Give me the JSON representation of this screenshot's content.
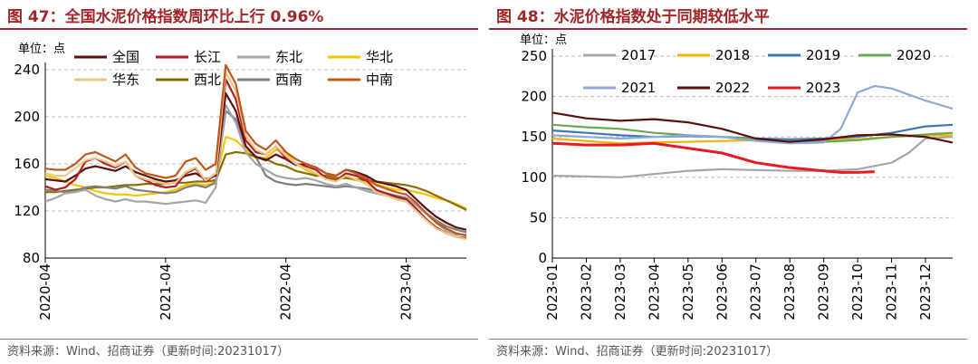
{
  "left": {
    "title": "图 47：全国水泥价格指数周环比上行 0.96%",
    "source": "资料来源：Wind、招商证券（更新时间:20231017）",
    "colors": {
      "title": "#a2262a",
      "grid": "#bfbfbf"
    }
  },
  "right": {
    "title": "图 48：水泥价格指数处于同期较低水平",
    "source": "资料来源：Wind、招商证券（更新时间:20231017）"
  },
  "chart_data": [
    {
      "type": "line",
      "title": "全国水泥价格指数周环比上行 0.96%",
      "unit_label": "单位：点",
      "ylim": [
        80,
        240
      ],
      "yticks": [
        80,
        120,
        160,
        200,
        240
      ],
      "x_range": [
        0,
        42
      ],
      "xticks": [
        {
          "x": 0,
          "label": "2020-04"
        },
        {
          "x": 12,
          "label": "2021-04"
        },
        {
          "x": 24,
          "label": "2022-04"
        },
        {
          "x": 36,
          "label": "2023-04"
        }
      ],
      "x": [
        0,
        1,
        2,
        3,
        4,
        5,
        6,
        7,
        8,
        9,
        10,
        11,
        12,
        13,
        14,
        15,
        16,
        17,
        18,
        19,
        20,
        21,
        22,
        23,
        24,
        25,
        26,
        27,
        28,
        29,
        30,
        31,
        32,
        33,
        34,
        35,
        36,
        37,
        38,
        39,
        40,
        41,
        42
      ],
      "series": [
        {
          "name": "全国",
          "color": "#5b0f0f",
          "values": [
            147,
            146,
            145,
            150,
            156,
            158,
            156,
            154,
            158,
            153,
            150,
            147,
            145,
            146,
            150,
            152,
            147,
            150,
            220,
            205,
            175,
            166,
            163,
            168,
            164,
            159,
            160,
            157,
            152,
            150,
            155,
            153,
            150,
            145,
            143,
            141,
            138,
            130,
            122,
            115,
            110,
            106,
            104
          ]
        },
        {
          "name": "长江",
          "color": "#b01e23",
          "values": [
            141,
            138,
            140,
            147,
            162,
            165,
            160,
            157,
            162,
            150,
            146,
            142,
            140,
            141,
            152,
            156,
            145,
            151,
            232,
            215,
            180,
            170,
            168,
            175,
            165,
            160,
            158,
            155,
            148,
            146,
            152,
            150,
            146,
            138,
            135,
            132,
            130,
            122,
            113,
            106,
            101,
            98,
            97
          ]
        },
        {
          "name": "东北",
          "color": "#a6a6a6",
          "values": [
            128,
            131,
            135,
            136,
            138,
            133,
            130,
            128,
            130,
            128,
            128,
            127,
            126,
            127,
            128,
            129,
            127,
            140,
            210,
            195,
            170,
            160,
            155,
            150,
            148,
            147,
            148,
            146,
            143,
            141,
            143,
            140,
            137,
            135,
            133,
            131,
            130,
            125,
            118,
            110,
            103,
            100,
            100
          ]
        },
        {
          "name": "华北",
          "color": "#f7c500",
          "values": [
            150,
            148,
            145,
            142,
            140,
            137,
            135,
            134,
            134,
            133,
            134,
            135,
            136,
            138,
            142,
            143,
            142,
            145,
            183,
            180,
            172,
            165,
            165,
            172,
            170,
            160,
            155,
            150,
            150,
            147,
            148,
            146,
            145,
            143,
            140,
            138,
            138,
            136,
            134,
            131,
            129,
            126,
            122
          ]
        },
        {
          "name": "华东",
          "color": "#e8c98a",
          "values": [
            152,
            150,
            150,
            156,
            163,
            165,
            162,
            158,
            162,
            150,
            147,
            145,
            143,
            144,
            153,
            157,
            146,
            152,
            238,
            222,
            184,
            172,
            168,
            175,
            167,
            160,
            156,
            152,
            147,
            145,
            150,
            147,
            143,
            136,
            133,
            130,
            128,
            120,
            112,
            105,
            101,
            98,
            96
          ]
        },
        {
          "name": "西北",
          "color": "#8c6d00",
          "values": [
            136,
            136,
            137,
            138,
            139,
            140,
            140,
            141,
            142,
            142,
            143,
            143,
            143,
            144,
            144,
            145,
            145,
            146,
            168,
            170,
            169,
            166,
            164,
            160,
            158,
            154,
            152,
            150,
            150,
            148,
            148,
            147,
            146,
            145,
            144,
            143,
            142,
            140,
            137,
            133,
            129,
            125,
            121
          ]
        },
        {
          "name": "西南",
          "color": "#7f7f7f",
          "values": [
            138,
            137,
            136,
            137,
            140,
            141,
            140,
            139,
            141,
            138,
            137,
            136,
            135,
            136,
            140,
            142,
            140,
            144,
            205,
            198,
            175,
            166,
            150,
            145,
            143,
            142,
            143,
            142,
            141,
            140,
            141,
            140,
            139,
            137,
            135,
            133,
            131,
            125,
            118,
            112,
            107,
            104,
            102
          ]
        },
        {
          "name": "中南",
          "color": "#c0561b",
          "values": [
            156,
            155,
            155,
            160,
            168,
            170,
            166,
            162,
            168,
            157,
            152,
            150,
            148,
            150,
            162,
            165,
            155,
            160,
            244,
            228,
            188,
            177,
            172,
            180,
            170,
            164,
            160,
            157,
            152,
            150,
            155,
            152,
            148,
            142,
            139,
            136,
            134,
            127,
            118,
            110,
            105,
            101,
            99
          ]
        }
      ]
    },
    {
      "type": "line",
      "title": "水泥价格指数处于同期较低水平",
      "unit_label": "单位：点",
      "ylim": [
        0,
        250
      ],
      "yticks": [
        0,
        50,
        100,
        150,
        200,
        250
      ],
      "x_range": [
        0,
        11.8
      ],
      "xticks": [
        {
          "x": 0,
          "label": "2023-01"
        },
        {
          "x": 1,
          "label": "2023-02"
        },
        {
          "x": 2,
          "label": "2023-03"
        },
        {
          "x": 3,
          "label": "2023-04"
        },
        {
          "x": 4,
          "label": "2023-05"
        },
        {
          "x": 5,
          "label": "2023-06"
        },
        {
          "x": 6,
          "label": "2023-07"
        },
        {
          "x": 7,
          "label": "2023-08"
        },
        {
          "x": 8,
          "label": "2023-09"
        },
        {
          "x": 9,
          "label": "2023-10"
        },
        {
          "x": 10,
          "label": "2023-11"
        },
        {
          "x": 11,
          "label": "2023-12"
        }
      ],
      "series": [
        {
          "name": "2017",
          "color": "#a6a6a6",
          "x": [
            0,
            1,
            2,
            3,
            4,
            5,
            6,
            7,
            8,
            9,
            10,
            10.5,
            11,
            11.8
          ],
          "values": [
            102,
            101,
            100,
            104,
            108,
            110,
            109,
            108,
            108,
            110,
            118,
            130,
            148,
            150
          ]
        },
        {
          "name": "2018",
          "color": "#f2b200",
          "x": [
            0,
            1,
            2,
            3,
            4,
            5,
            6,
            7,
            8,
            9,
            10,
            11,
            11.8
          ],
          "values": [
            148,
            145,
            142,
            143,
            144,
            145,
            146,
            144,
            146,
            147,
            150,
            152,
            152
          ]
        },
        {
          "name": "2019",
          "color": "#3b78b5",
          "x": [
            0,
            1,
            2,
            3,
            4,
            5,
            6,
            7,
            8,
            9,
            10,
            11,
            11.8
          ],
          "values": [
            158,
            155,
            152,
            150,
            151,
            150,
            148,
            147,
            148,
            150,
            155,
            163,
            165
          ]
        },
        {
          "name": "2020",
          "color": "#6aa84f",
          "x": [
            0,
            1,
            2,
            3,
            4,
            5,
            6,
            7,
            8,
            9,
            10,
            11,
            11.8
          ],
          "values": [
            165,
            162,
            160,
            155,
            152,
            150,
            147,
            145,
            144,
            146,
            150,
            153,
            155
          ]
        },
        {
          "name": "2021",
          "color": "#8fa8d8",
          "x": [
            0,
            1,
            2,
            3,
            4,
            5,
            6,
            7,
            8,
            8.5,
            9,
            9.5,
            10,
            11,
            11.8
          ],
          "values": [
            152,
            150,
            148,
            150,
            152,
            150,
            145,
            142,
            143,
            160,
            205,
            213,
            210,
            195,
            185
          ]
        },
        {
          "name": "2022",
          "color": "#5b0f0f",
          "x": [
            0,
            1,
            2,
            3,
            4,
            5,
            6,
            7,
            8,
            9,
            10,
            11,
            11.8
          ],
          "values": [
            180,
            173,
            170,
            172,
            168,
            160,
            148,
            144,
            147,
            152,
            153,
            150,
            143
          ]
        },
        {
          "name": "2023",
          "color": "#e8191f",
          "x": [
            0,
            1,
            2,
            3,
            4,
            5,
            6,
            7,
            8,
            8.5,
            9,
            9.5
          ],
          "values": [
            142,
            140,
            140,
            142,
            136,
            130,
            118,
            112,
            108,
            106,
            106,
            107
          ]
        }
      ]
    }
  ]
}
